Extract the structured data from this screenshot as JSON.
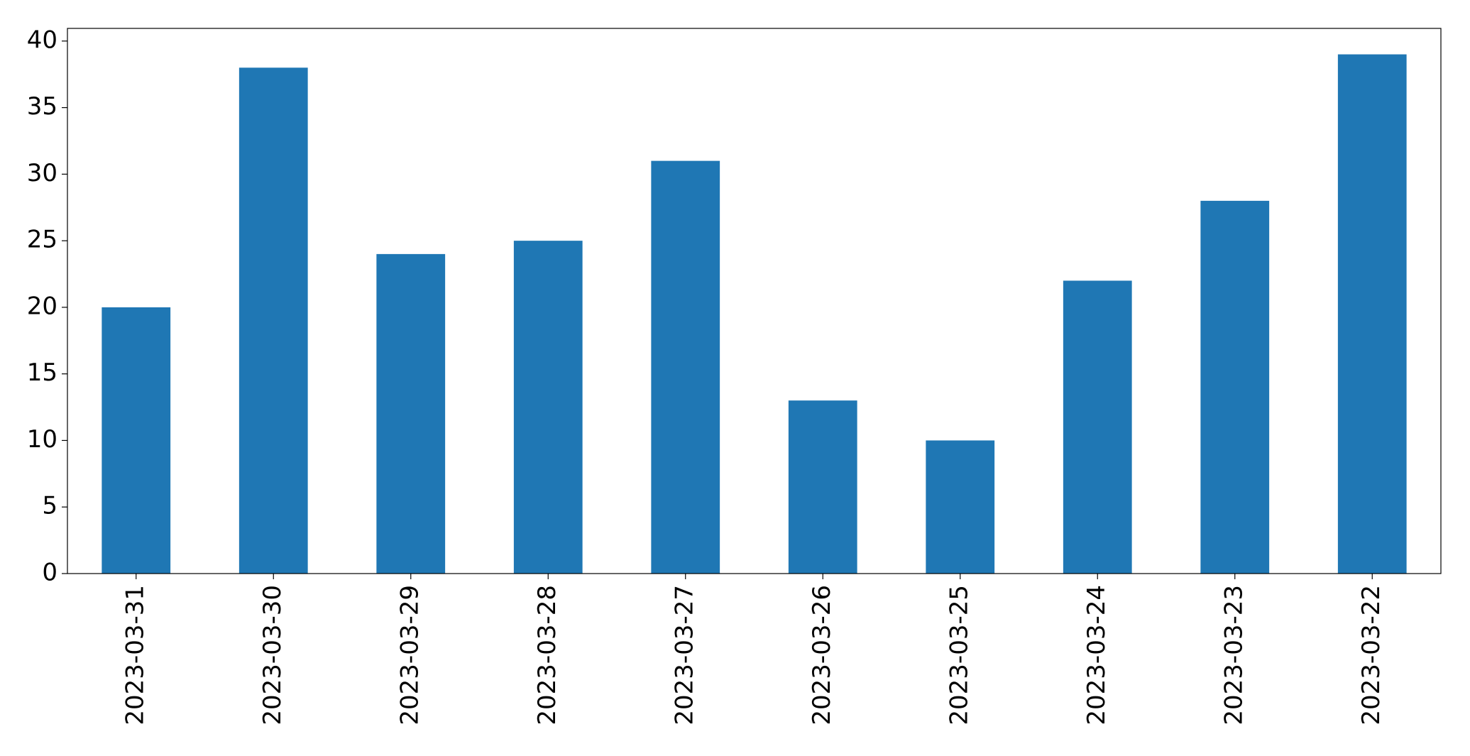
{
  "chart_data": {
    "type": "bar",
    "categories": [
      "2023-03-31",
      "2023-03-30",
      "2023-03-29",
      "2023-03-28",
      "2023-03-27",
      "2023-03-26",
      "2023-03-25",
      "2023-03-24",
      "2023-03-23",
      "2023-03-22"
    ],
    "values": [
      20,
      38,
      24,
      25,
      31,
      13,
      10,
      22,
      28,
      39
    ],
    "color": "#1f77b4",
    "ylim": [
      0,
      40.95
    ],
    "yticks": [
      0,
      5,
      10,
      15,
      20,
      25,
      30,
      35,
      40
    ],
    "grid": false
  }
}
